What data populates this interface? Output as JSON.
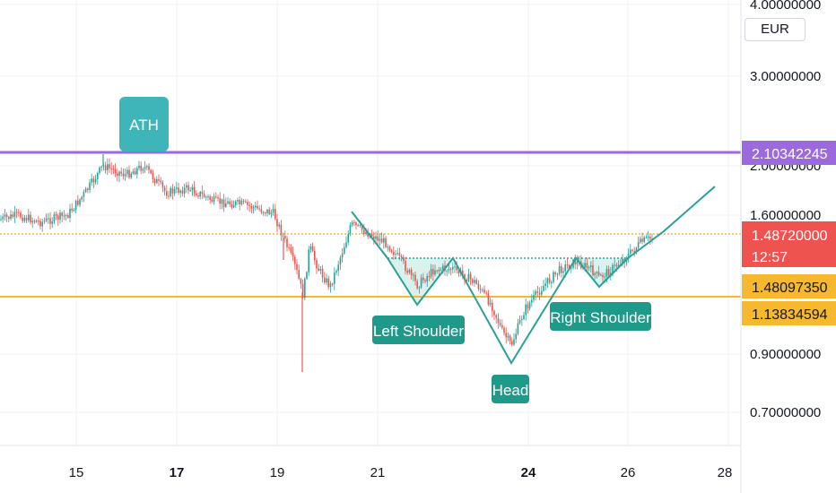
{
  "currency": "EUR",
  "chart_data": {
    "type": "candlestick",
    "x_ticks": [
      "15",
      "17",
      "19",
      "21",
      "24",
      "26",
      "28"
    ],
    "y_ticks": [
      "0.70000000",
      "0.90000000",
      "1.60000000",
      "2.00000000",
      "3.00000000",
      "4.00000000"
    ],
    "y_scale": "log",
    "annotations": {
      "ath": "ATH",
      "left_shoulder": "Left Shoulder",
      "head": "Head",
      "right_shoulder": "Right Shoulder"
    },
    "price_tags": {
      "ath_line": "2.10342245",
      "last_price": "1.48720000",
      "countdown": "12:57",
      "neckline": "1.48097350",
      "support_line": "1.13834594"
    },
    "colors": {
      "up": "#26a69a",
      "down": "#ef5350",
      "ath_line": "#9c6ade",
      "support_line": "#f5b82e",
      "pattern": "#2aa198",
      "pattern_fill": "#d4efea",
      "label_bg": "#1f9a8a",
      "ath_label_bg": "#3eb6b9",
      "last_price_bg": "#ef5350"
    }
  }
}
